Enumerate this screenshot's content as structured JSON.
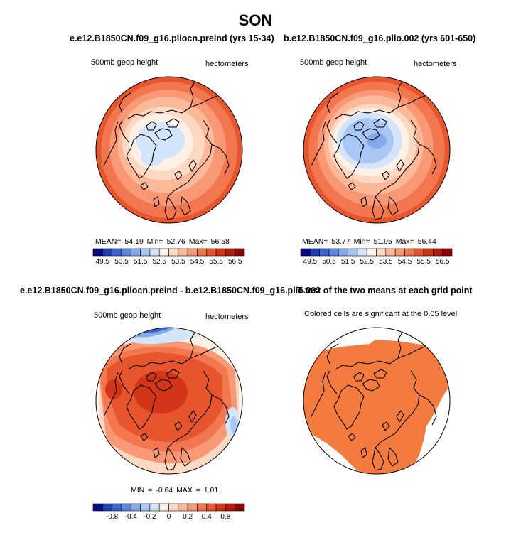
{
  "title": "SON",
  "panels": {
    "top_left": {
      "title": "e.e12.B1850CN.f09_g16.pliocn.preind (yrs 15-34)",
      "left_label": "500mb geop height",
      "right_label": "hectometers",
      "stats": "MEAN=   54.19   Min=   52.76   Max=   56.58"
    },
    "top_right": {
      "title": "b.e12.B1850CN.f09_g16.plio.002 (yrs 601-650)",
      "left_label": "500mb geop height",
      "right_label": "hectometers",
      "stats": "MEAN=   53.77   Min=   51.95   Max=   56.44"
    },
    "bottom_left": {
      "title": "e.e12.B1850CN.f09_g16.pliocn.preind - b.e12.B1850CN.f09_g16.plio.002",
      "left_label": "500mb geop height",
      "right_label": "hectometers",
      "stats": "MIN =   -0.64   MAX =   1.01"
    },
    "bottom_right": {
      "title": "T-test of the two means at each grid point",
      "left_label": "Colored cells are significant at the 0.05 level"
    }
  },
  "colorbar_abs": {
    "labels": [
      "49.5",
      "50.5",
      "51.5",
      "52.5",
      "53.5",
      "54.5",
      "55.5",
      "56.5"
    ],
    "colors": [
      "#08088a",
      "#1b3fb5",
      "#3a66cf",
      "#5d88e0",
      "#85a9ec",
      "#aac6f4",
      "#d2e5fa",
      "#fff1e6",
      "#fdd9c4",
      "#fcb99a",
      "#f99874",
      "#f3774e",
      "#e7552f",
      "#d23518",
      "#b71908",
      "#8a0705"
    ]
  },
  "colorbar_diff": {
    "labels": [
      "-0.8",
      "-0.4",
      "-0.2",
      "0",
      "0.2",
      "0.4",
      "0.8"
    ],
    "colors": [
      "#08088a",
      "#1b3fb5",
      "#3a66cf",
      "#5d88e0",
      "#85a9ec",
      "#aac6f4",
      "#d2e5fa",
      "#fff1e6",
      "#fdd9c4",
      "#fcb99a",
      "#f99874",
      "#f3774e",
      "#e7552f",
      "#d23518",
      "#b71908",
      "#8a0705"
    ]
  },
  "colors": {
    "ring_outer": "#e7552f",
    "significance": "#f47b3f",
    "coast": "#000000"
  }
}
